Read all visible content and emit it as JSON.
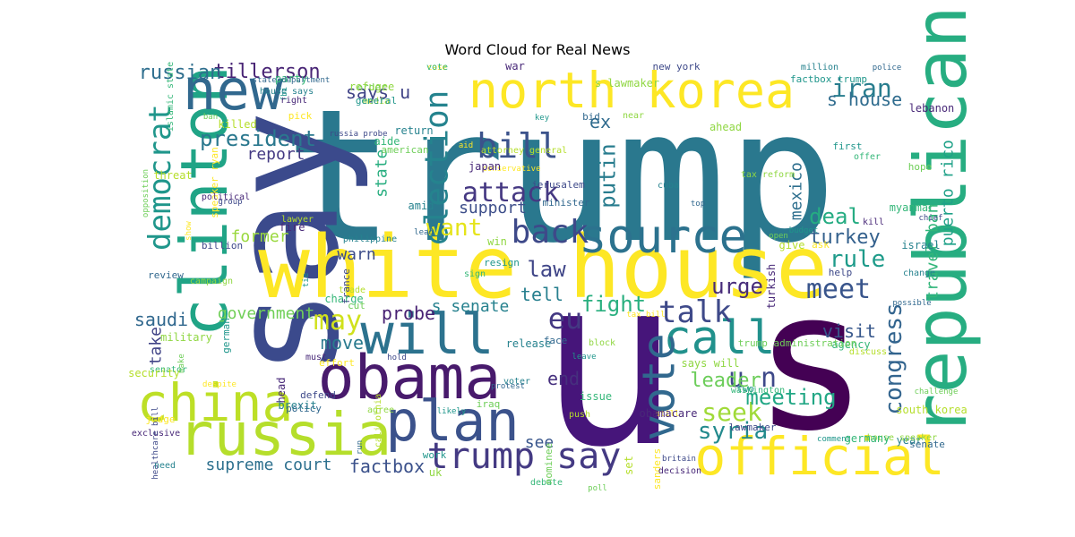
{
  "chart_data": {
    "type": "wordcloud",
    "title": "Word Cloud for Real News",
    "colormap": "viridis",
    "background": "#ffffff",
    "words": [
      {
        "text": "trump",
        "weight": 1.0,
        "color": "#2a788e"
      },
      {
        "text": "u",
        "weight": 0.92,
        "color": "#46157a"
      },
      {
        "text": "s",
        "weight": 0.9,
        "color": "#440154"
      },
      {
        "text": "say",
        "weight": 0.7,
        "color": "#3b4a8c"
      },
      {
        "text": "white house",
        "weight": 0.62,
        "color": "#fde725"
      },
      {
        "text": "republican",
        "weight": 0.45,
        "color": "#27ad81"
      },
      {
        "text": "north korea",
        "weight": 0.42,
        "color": "#fde725"
      },
      {
        "text": "clinton",
        "weight": 0.42,
        "color": "#20a486"
      },
      {
        "text": "obama",
        "weight": 0.4,
        "color": "#481a6c"
      },
      {
        "text": "russia",
        "weight": 0.4,
        "color": "#b5de2b"
      },
      {
        "text": "official",
        "weight": 0.38,
        "color": "#fde725"
      },
      {
        "text": "new",
        "weight": 0.34,
        "color": "#31688e"
      },
      {
        "text": "china",
        "weight": 0.34,
        "color": "#bddf26"
      },
      {
        "text": "will",
        "weight": 0.33,
        "color": "#2c728e"
      },
      {
        "text": "plan",
        "weight": 0.32,
        "color": "#3b528b"
      },
      {
        "text": "call",
        "weight": 0.3,
        "color": "#21918c"
      },
      {
        "text": "vote",
        "weight": 0.28,
        "color": "#31688e"
      },
      {
        "text": "source",
        "weight": 0.28,
        "color": "#2c728e"
      },
      {
        "text": "trump say",
        "weight": 0.25,
        "color": "#443a83"
      },
      {
        "text": "back",
        "weight": 0.22,
        "color": "#3e4989"
      },
      {
        "text": "election",
        "weight": 0.22,
        "color": "#25838e"
      },
      {
        "text": "democrat",
        "weight": 0.2,
        "color": "#1f968b"
      },
      {
        "text": "bill",
        "weight": 0.2,
        "color": "#3b528b"
      },
      {
        "text": "attack",
        "weight": 0.18,
        "color": "#453882"
      },
      {
        "text": "u n",
        "weight": 0.18,
        "color": "#3e4989"
      },
      {
        "text": "talk",
        "weight": 0.17,
        "color": "#3e4989"
      },
      {
        "text": "meet",
        "weight": 0.17,
        "color": "#39558c"
      },
      {
        "text": "congress",
        "weight": 0.16,
        "color": "#32648e"
      },
      {
        "text": "eu",
        "weight": 0.16,
        "color": "#443983"
      },
      {
        "text": "iran",
        "weight": 0.15,
        "color": "#287d8e"
      },
      {
        "text": "may",
        "weight": 0.15,
        "color": "#d0e11c"
      },
      {
        "text": "seek",
        "weight": 0.14,
        "color": "#a0da39"
      },
      {
        "text": "syria",
        "weight": 0.14,
        "color": "#238a8d"
      },
      {
        "text": "rule",
        "weight": 0.14,
        "color": "#1e9b8a"
      },
      {
        "text": "want",
        "weight": 0.13,
        "color": "#e5e419"
      },
      {
        "text": "president",
        "weight": 0.12,
        "color": "#2a788e"
      },
      {
        "text": "meeting",
        "weight": 0.12,
        "color": "#22a785"
      },
      {
        "text": "deal",
        "weight": 0.12,
        "color": "#25ac82"
      },
      {
        "text": "law",
        "weight": 0.12,
        "color": "#404688"
      },
      {
        "text": "leader",
        "weight": 0.11,
        "color": "#6ccd5a"
      },
      {
        "text": "fight",
        "weight": 0.11,
        "color": "#29af7f"
      },
      {
        "text": "urge",
        "weight": 0.11,
        "color": "#472c7a"
      },
      {
        "text": "putin",
        "weight": 0.11,
        "color": "#287c8e"
      },
      {
        "text": "turkey",
        "weight": 0.1,
        "color": "#34618d"
      },
      {
        "text": "tillerson",
        "weight": 0.1,
        "color": "#482475"
      },
      {
        "text": "russian",
        "weight": 0.1,
        "color": "#2e6e8e"
      },
      {
        "text": "supreme court",
        "weight": 0.1,
        "color": "#2d708e"
      },
      {
        "text": "factbox",
        "weight": 0.1,
        "color": "#3b518b"
      },
      {
        "text": "government",
        "weight": 0.1,
        "color": "#70cf57"
      },
      {
        "text": "report",
        "weight": 0.1,
        "color": "#443a83"
      },
      {
        "text": "says u",
        "weight": 0.1,
        "color": "#414487"
      },
      {
        "text": "s house",
        "weight": 0.1,
        "color": "#2f6c8e"
      },
      {
        "text": "s senate",
        "weight": 0.1,
        "color": "#26818e"
      },
      {
        "text": "support",
        "weight": 0.1,
        "color": "#3d4e8a"
      },
      {
        "text": "probe",
        "weight": 0.1,
        "color": "#482173"
      },
      {
        "text": "tell",
        "weight": 0.1,
        "color": "#277f8e"
      },
      {
        "text": "visit",
        "weight": 0.1,
        "color": "#38588c"
      },
      {
        "text": "travel ban",
        "weight": 0.1,
        "color": "#32b67a"
      },
      {
        "text": "puerto rico",
        "weight": 0.1,
        "color": "#1fa188"
      },
      {
        "text": "mexico",
        "weight": 0.1,
        "color": "#2e6f8e"
      },
      {
        "text": "saudi",
        "weight": 0.1,
        "color": "#31688e"
      },
      {
        "text": "move",
        "weight": 0.1,
        "color": "#297a8e"
      },
      {
        "text": "take",
        "weight": 0.1,
        "color": "#414487"
      },
      {
        "text": "end",
        "weight": 0.1,
        "color": "#46307e"
      },
      {
        "text": "see",
        "weight": 0.1,
        "color": "#39568c"
      },
      {
        "text": "warn",
        "weight": 0.1,
        "color": "#3d4d8a"
      },
      {
        "text": "former",
        "weight": 0.1,
        "color": "#99d83d"
      },
      {
        "text": "ex",
        "weight": 0.1,
        "color": "#2f6b8e"
      },
      {
        "text": "state",
        "weight": 0.1,
        "color": "#28ae80"
      }
    ],
    "minor_words": [
      "fbi",
      "party",
      "order",
      "media",
      "case",
      "war",
      "new york",
      "million",
      "police",
      "s lawmaker",
      "factbox trump",
      "islamic state",
      "ban",
      "killed",
      "pick",
      "right",
      "russia probe",
      "return",
      "bid",
      "near",
      "key",
      "aide",
      "american",
      "attorney general",
      "conservative",
      "japan",
      "jerusalem",
      "cuba",
      "top",
      "ahead",
      "first",
      "offer",
      "opposition",
      "threat",
      "speaker ryan",
      "political",
      "group",
      "amid",
      "minister",
      "tax reform",
      "budget",
      "myanmar",
      "hope",
      "lawyer",
      "show",
      "fire",
      "billion",
      "philippine",
      "lead",
      "win",
      "resign",
      "sign",
      "open",
      "give",
      "ask",
      "kill",
      "chief",
      "israel",
      "review",
      "campaign",
      "tie",
      "charge",
      "cut",
      "trade",
      "tax bill",
      "turkish",
      "help",
      "change",
      "possible",
      "military",
      "german",
      "senator",
      "make",
      "security",
      "effort",
      "must",
      "hold",
      "release",
      "face",
      "block",
      "leave",
      "agency",
      "trump administration",
      "discuss",
      "despite",
      "head",
      "defend",
      "voter",
      "protest",
      "says will",
      "two",
      "washington",
      "challenge",
      "south korea",
      "judge",
      "exclusive",
      "healthcare bill",
      "brexit",
      "policy",
      "agree",
      "likely",
      "issue",
      "iraq",
      "push",
      "still",
      "obamacare",
      "lawmaker",
      "need",
      "run",
      "uk",
      "work",
      "debate",
      "poll",
      "set",
      "sanders",
      "decision",
      "britain",
      "year",
      "senate",
      "house speaker",
      "comment",
      "germany",
      "nominee",
      "california",
      "aid",
      "lebanon",
      "france",
      "house says",
      "state department",
      "refugee",
      "general",
      "vote"
    ]
  }
}
